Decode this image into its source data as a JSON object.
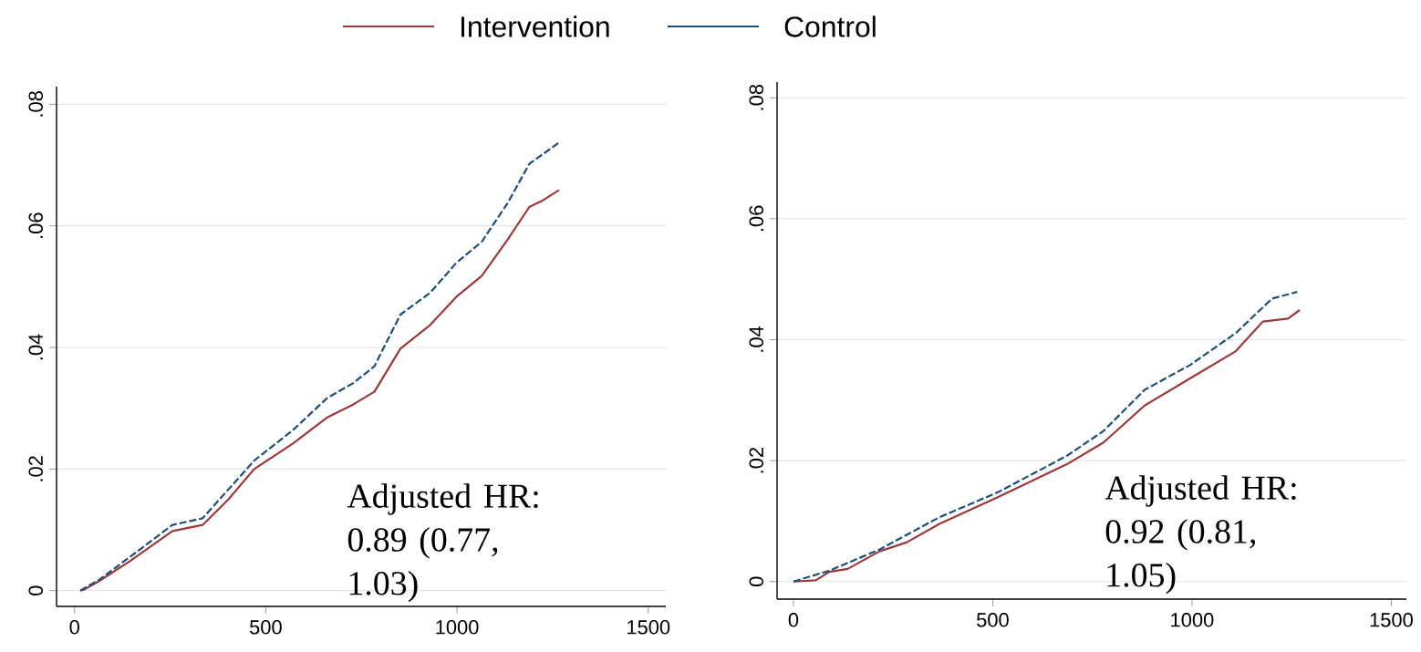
{
  "chart_data": [
    {
      "type": "line",
      "xlim": [
        -47,
        1546
      ],
      "ylim": [
        -0.0026,
        0.0829
      ],
      "xticks": [
        0,
        500,
        1000,
        1500
      ],
      "yticks": [
        0,
        {
          "value": 0.02,
          "label": ".02"
        },
        {
          "value": 0.04,
          "label": ".04"
        },
        {
          "value": 0.06,
          "label": ".06"
        },
        {
          "value": 0.08,
          "label": ".08"
        }
      ],
      "grid": "y",
      "legend": "top",
      "annotations": [
        "Adjusted HR: 0.89 (0.77, 1.03)"
      ],
      "series": [
        {
          "name": "Intervention",
          "color": "#9b3a3a",
          "line_style": "solid",
          "x": [
            15,
            26,
            65,
            144,
            256,
            335,
            402,
            470,
            571,
            661,
            728,
            784,
            852,
            930,
            998,
            1065,
            1133,
            1189,
            1222,
            1267
          ],
          "values": [
            0,
            0.0002,
            0.0016,
            0.0048,
            0.0098,
            0.0108,
            0.015,
            0.02,
            0.0242,
            0.0285,
            0.0306,
            0.0327,
            0.0398,
            0.0437,
            0.0483,
            0.0518,
            0.0578,
            0.0631,
            0.0641,
            0.0659
          ]
        },
        {
          "name": "Control",
          "color": "#1f4e79",
          "line_style": "dashed",
          "x": [
            15,
            65,
            144,
            256,
            335,
            470,
            571,
            661,
            728,
            784,
            852,
            930,
            998,
            1065,
            1133,
            1189,
            1267
          ],
          "values": [
            0,
            0.0018,
            0.0055,
            0.0108,
            0.0119,
            0.0214,
            0.0264,
            0.0317,
            0.0341,
            0.0369,
            0.0454,
            0.049,
            0.0539,
            0.0574,
            0.0638,
            0.0702,
            0.0737
          ]
        }
      ]
    },
    {
      "type": "line",
      "xlim": [
        -41,
        1538
      ],
      "ylim": [
        -0.0029,
        0.0826
      ],
      "xticks": [
        0,
        500,
        1000,
        1500
      ],
      "yticks": [
        0,
        {
          "value": 0.02,
          "label": ".02"
        },
        {
          "value": 0.04,
          "label": ".04"
        },
        {
          "value": 0.06,
          "label": ".06"
        },
        {
          "value": 0.08,
          "label": ".08"
        }
      ],
      "grid": "y",
      "annotations": [
        "Adjusted HR: 0.92 (0.81, 1.05)"
      ],
      "series": [
        {
          "color": "#9b3a3a",
          "line_style": "solid",
          "x": [
            0,
            56,
            90,
            136,
            216,
            285,
            365,
            514,
            686,
            778,
            881,
            995,
            1110,
            1178,
            1241,
            1270
          ],
          "values": [
            0,
            0.0002,
            0.0016,
            0.0021,
            0.005,
            0.0065,
            0.0095,
            0.014,
            0.0194,
            0.023,
            0.0291,
            0.0336,
            0.0381,
            0.043,
            0.0435,
            0.0449
          ]
        },
        {
          "color": "#1f4e79",
          "line_style": "dashed",
          "x": [
            0,
            90,
            216,
            365,
            514,
            686,
            778,
            881,
            995,
            1110,
            1201,
            1264
          ],
          "values": [
            0,
            0.0018,
            0.0053,
            0.0106,
            0.0148,
            0.0208,
            0.0249,
            0.0317,
            0.0358,
            0.0411,
            0.0468,
            0.0479
          ]
        }
      ]
    }
  ]
}
